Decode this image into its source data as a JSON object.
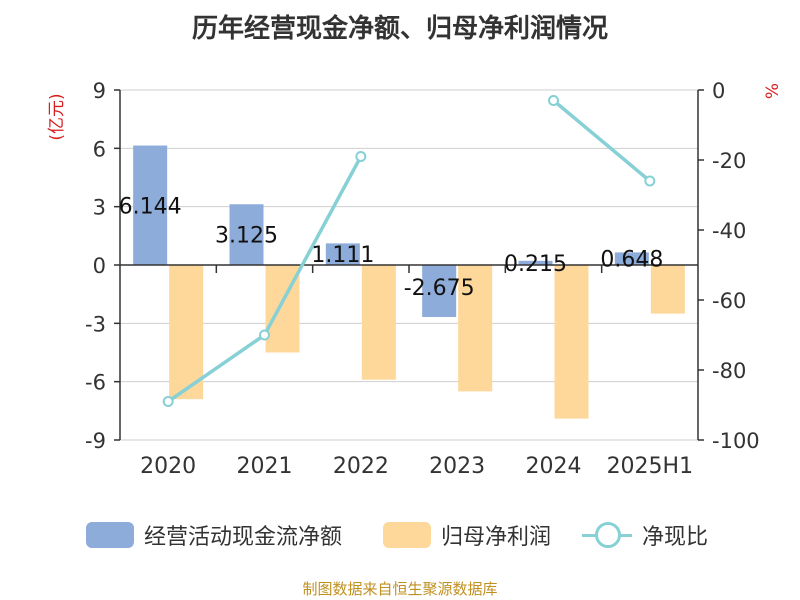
{
  "chart_data": {
    "type": "bar",
    "title": "历年经营现金净额、归母净利润情况",
    "categories": [
      "2020",
      "2021",
      "2022",
      "2023",
      "2024",
      "2025H1"
    ],
    "left_axis": {
      "label": "(亿元)",
      "ticks": [
        "9",
        "6",
        "3",
        "0",
        "-3",
        "-6",
        "-9"
      ],
      "ylim": [
        -9,
        9
      ]
    },
    "right_axis": {
      "label": "%",
      "ticks": [
        "0",
        "-20",
        "-40",
        "-60",
        "-80",
        "-100"
      ],
      "ylim": [
        -100,
        0
      ]
    },
    "series": [
      {
        "name": "经营活动现金流净额",
        "kind": "bar",
        "axis": "left",
        "color": "#8eacd9",
        "values": [
          6.144,
          3.125,
          1.111,
          -2.675,
          0.215,
          0.648
        ],
        "labels": [
          "6.144",
          "3.125",
          "1.111",
          "-2.675",
          "0.215",
          "0.648"
        ]
      },
      {
        "name": "归母净利润",
        "kind": "bar",
        "axis": "left",
        "color": "#fdd89a",
        "values": [
          -6.9,
          -4.5,
          -5.9,
          -6.5,
          -7.9,
          -2.5
        ]
      },
      {
        "name": "净现比",
        "kind": "line",
        "axis": "right",
        "color": "#86d0d6",
        "values": [
          -89,
          -70,
          -19,
          null,
          -3,
          -26
        ]
      }
    ],
    "grid": true,
    "legend": "bottom"
  },
  "source_note": "制图数据来自恒生聚源数据库"
}
